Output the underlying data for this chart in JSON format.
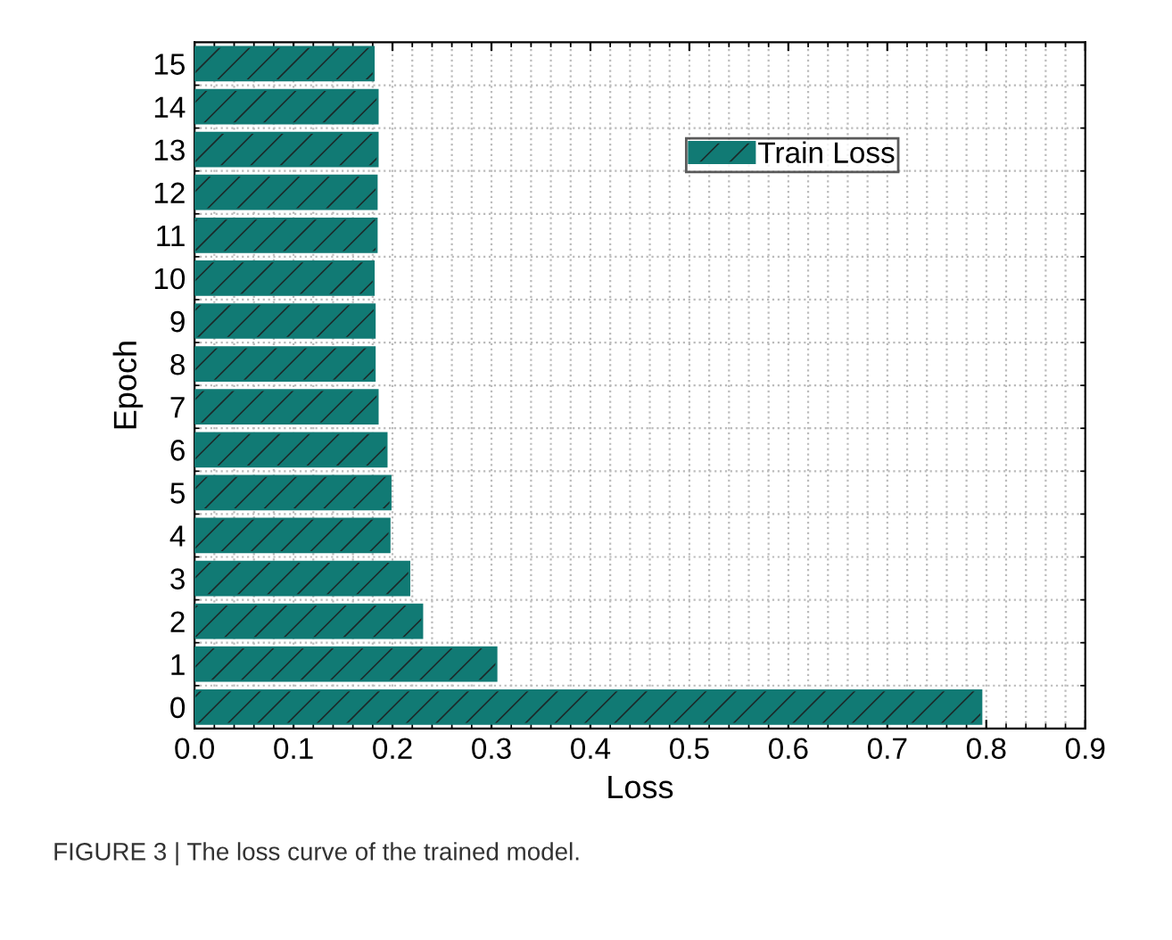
{
  "chart_data": {
    "type": "bar",
    "orientation": "horizontal",
    "xlabel": "Loss",
    "ylabel": "Epoch",
    "categories": [
      "15",
      "14",
      "13",
      "12",
      "11",
      "10",
      "9",
      "8",
      "7",
      "6",
      "5",
      "4",
      "3",
      "2",
      "1",
      "0"
    ],
    "series": [
      {
        "name": "Train Loss",
        "color": "#117a74",
        "values": [
          0.181,
          0.185,
          0.185,
          0.184,
          0.184,
          0.181,
          0.182,
          0.182,
          0.185,
          0.194,
          0.198,
          0.197,
          0.217,
          0.23,
          0.305,
          0.795
        ]
      }
    ],
    "xlim": [
      0,
      0.9
    ],
    "xticks": [
      {
        "value": 0,
        "label": "0.0"
      },
      {
        "value": 0.1,
        "label": "0.1"
      },
      {
        "value": 0.2,
        "label": "0.2"
      },
      {
        "value": 0.3,
        "label": "0.3"
      },
      {
        "value": 0.4,
        "label": "0.4"
      },
      {
        "value": 0.5,
        "label": "0.5"
      },
      {
        "value": 0.6,
        "label": "0.6"
      },
      {
        "value": 0.7,
        "label": "0.7"
      },
      {
        "value": 0.8,
        "label": "0.8"
      },
      {
        "value": 0.9,
        "label": "0.9"
      }
    ],
    "grid": true,
    "legend": "top right",
    "annotations": [
      "FIGURE 3 | The loss curve of the trained model."
    ]
  }
}
